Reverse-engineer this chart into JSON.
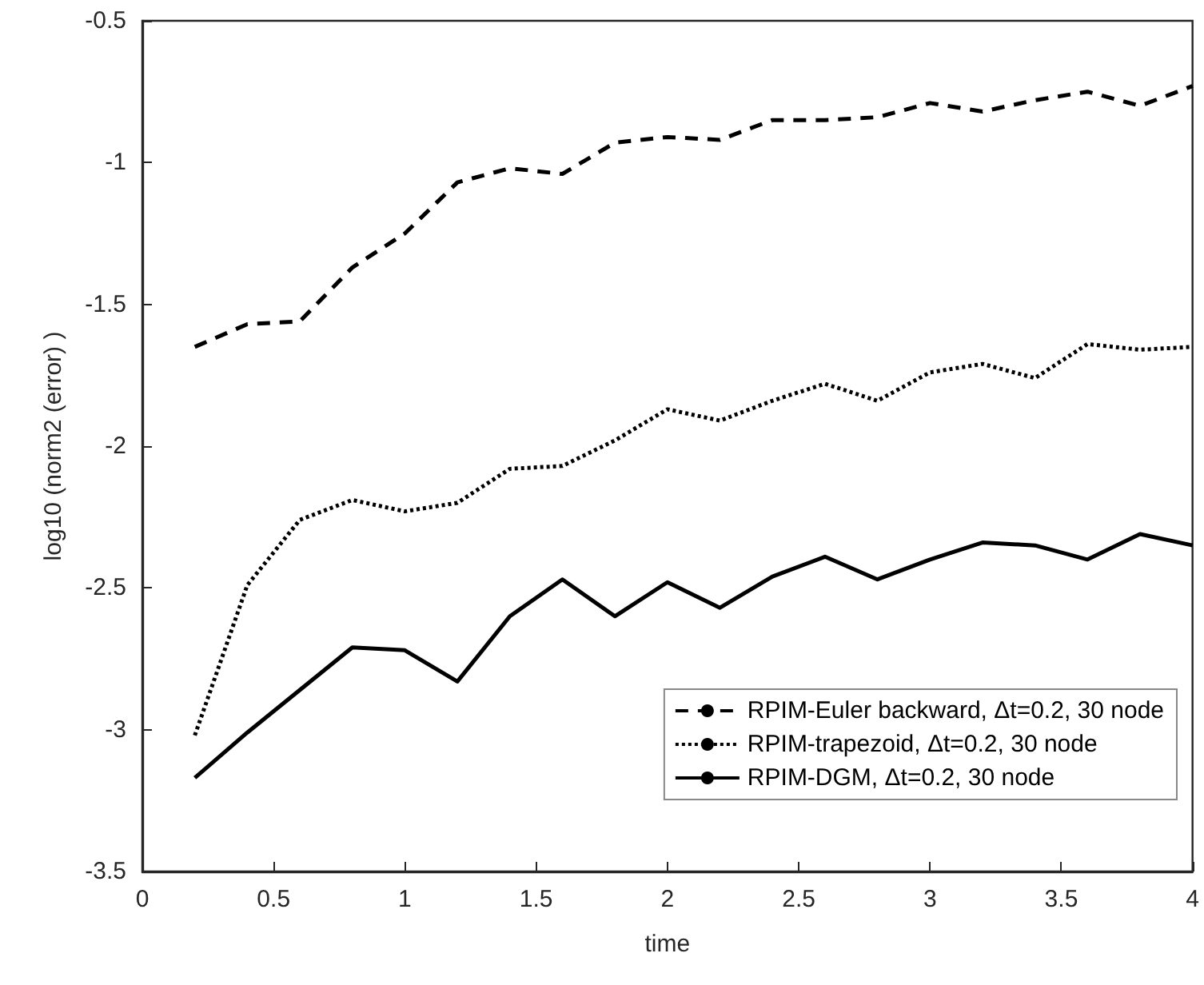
{
  "chart_data": {
    "type": "line",
    "xlabel": "time",
    "ylabel": "log10 (norm2 (error) )",
    "x": [
      0.2,
      0.4,
      0.6,
      0.8,
      1.0,
      1.2,
      1.4,
      1.6,
      1.8,
      2.0,
      2.2,
      2.4,
      2.6,
      2.8,
      3.0,
      3.2,
      3.4,
      3.6,
      3.8,
      4.0
    ],
    "series": [
      {
        "name": "RPIM-Euler backward, Δt=0.2, 30 node",
        "color": "#000000",
        "line_style": "dashed",
        "values": [
          -1.65,
          -1.57,
          -1.56,
          -1.37,
          -1.25,
          -1.07,
          -1.02,
          -1.04,
          -0.93,
          -0.91,
          -0.92,
          -0.85,
          -0.85,
          -0.84,
          -0.79,
          -0.82,
          -0.78,
          -0.75,
          -0.8,
          -0.73
        ]
      },
      {
        "name": "RPIM-trapezoid, Δt=0.2, 30 node",
        "color": "#000000",
        "line_style": "dotted",
        "values": [
          -3.02,
          -2.49,
          -2.26,
          -2.19,
          -2.23,
          -2.2,
          -2.08,
          -2.07,
          -1.98,
          -1.87,
          -1.91,
          -1.84,
          -1.78,
          -1.84,
          -1.74,
          -1.71,
          -1.76,
          -1.64,
          -1.66,
          -1.65
        ]
      },
      {
        "name": "RPIM-DGM, Δt=0.2, 30 node",
        "color": "#000000",
        "line_style": "solid",
        "values": [
          -3.17,
          -3.01,
          -2.86,
          -2.71,
          -2.72,
          -2.83,
          -2.6,
          -2.47,
          -2.6,
          -2.48,
          -2.57,
          -2.46,
          -2.39,
          -2.47,
          -2.4,
          -2.34,
          -2.35,
          -2.4,
          -2.31,
          -2.35
        ]
      }
    ],
    "xlim": [
      0,
      4
    ],
    "xticks": [
      0,
      0.5,
      1,
      1.5,
      2,
      2.5,
      3,
      3.5,
      4
    ],
    "ylim": [
      -3.5,
      -0.5
    ],
    "yticks": [
      -3.5,
      -3,
      -2.5,
      -2,
      -1.5,
      -1,
      -0.5
    ],
    "grid": false,
    "legend": "bottom right",
    "marker": "none"
  }
}
